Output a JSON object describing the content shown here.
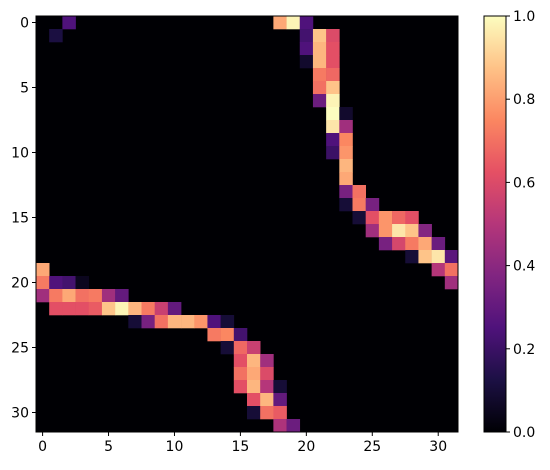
{
  "chart_data": {
    "type": "heatmap",
    "title": "",
    "xlabel": "",
    "ylabel": "",
    "colormap": "magma",
    "rows": 32,
    "cols": 32,
    "xlim": [
      -0.5,
      31.5
    ],
    "ylim": [
      31.5,
      -0.5
    ],
    "x_ticks": [
      0,
      5,
      10,
      15,
      20,
      25,
      30
    ],
    "y_ticks": [
      0,
      5,
      10,
      15,
      20,
      25,
      30
    ],
    "x_tick_labels": [
      "0",
      "5",
      "10",
      "15",
      "20",
      "25",
      "30"
    ],
    "y_tick_labels": [
      "0",
      "5",
      "10",
      "15",
      "20",
      "25",
      "30"
    ],
    "colorbar": {
      "min": 0.0,
      "max": 1.0,
      "ticks": [
        0.0,
        0.2,
        0.4,
        0.6,
        0.8,
        1.0
      ],
      "tick_labels": [
        "0.0",
        "0.2",
        "0.4",
        "0.6",
        "0.8",
        "1.0"
      ]
    },
    "cells": [
      [
        0,
        2,
        0.25
      ],
      [
        1,
        1,
        0.12
      ],
      [
        0,
        18,
        0.82
      ],
      [
        0,
        19,
        0.98
      ],
      [
        0,
        20,
        0.25
      ],
      [
        1,
        20,
        0.22
      ],
      [
        1,
        21,
        0.88
      ],
      [
        1,
        22,
        0.6
      ],
      [
        2,
        20,
        0.25
      ],
      [
        2,
        21,
        0.85
      ],
      [
        2,
        22,
        0.62
      ],
      [
        3,
        20,
        0.08
      ],
      [
        3,
        21,
        0.85
      ],
      [
        3,
        22,
        0.62
      ],
      [
        4,
        21,
        0.72
      ],
      [
        4,
        22,
        0.68
      ],
      [
        5,
        21,
        0.7
      ],
      [
        5,
        22,
        0.88
      ],
      [
        6,
        21,
        0.32
      ],
      [
        6,
        22,
        0.98
      ],
      [
        7,
        22,
        1.0
      ],
      [
        7,
        23,
        0.08
      ],
      [
        8,
        22,
        0.95
      ],
      [
        8,
        23,
        0.45
      ],
      [
        9,
        22,
        0.25
      ],
      [
        9,
        23,
        0.75
      ],
      [
        10,
        22,
        0.2
      ],
      [
        10,
        23,
        0.78
      ],
      [
        11,
        23,
        0.85
      ],
      [
        12,
        23,
        0.82
      ],
      [
        13,
        23,
        0.35
      ],
      [
        13,
        24,
        0.7
      ],
      [
        14,
        23,
        0.1
      ],
      [
        14,
        24,
        0.72
      ],
      [
        14,
        25,
        0.35
      ],
      [
        15,
        24,
        0.1
      ],
      [
        15,
        25,
        0.62
      ],
      [
        15,
        26,
        0.78
      ],
      [
        15,
        27,
        0.68
      ],
      [
        15,
        28,
        0.62
      ],
      [
        16,
        25,
        0.45
      ],
      [
        16,
        26,
        0.78
      ],
      [
        16,
        27,
        0.95
      ],
      [
        16,
        28,
        0.88
      ],
      [
        16,
        29,
        0.38
      ],
      [
        17,
        26,
        0.35
      ],
      [
        17,
        27,
        0.58
      ],
      [
        17,
        28,
        0.72
      ],
      [
        17,
        29,
        0.82
      ],
      [
        17,
        30,
        0.32
      ],
      [
        18,
        28,
        0.1
      ],
      [
        18,
        29,
        0.88
      ],
      [
        18,
        30,
        0.95
      ],
      [
        18,
        31,
        0.28
      ],
      [
        19,
        0,
        0.82
      ],
      [
        19,
        30,
        0.5
      ],
      [
        19,
        31,
        0.7
      ],
      [
        20,
        0,
        0.72
      ],
      [
        20,
        1,
        0.25
      ],
      [
        20,
        2,
        0.22
      ],
      [
        20,
        3,
        0.05
      ],
      [
        20,
        31,
        0.45
      ],
      [
        21,
        0,
        0.45
      ],
      [
        21,
        1,
        0.72
      ],
      [
        21,
        2,
        0.82
      ],
      [
        21,
        3,
        0.7
      ],
      [
        21,
        4,
        0.72
      ],
      [
        21,
        5,
        0.45
      ],
      [
        21,
        6,
        0.3
      ],
      [
        22,
        1,
        0.62
      ],
      [
        22,
        2,
        0.62
      ],
      [
        22,
        3,
        0.62
      ],
      [
        22,
        4,
        0.65
      ],
      [
        22,
        5,
        0.88
      ],
      [
        22,
        6,
        0.98
      ],
      [
        22,
        7,
        0.85
      ],
      [
        22,
        8,
        0.72
      ],
      [
        22,
        9,
        0.55
      ],
      [
        22,
        10,
        0.3
      ],
      [
        23,
        7,
        0.1
      ],
      [
        23,
        8,
        0.35
      ],
      [
        23,
        9,
        0.7
      ],
      [
        23,
        10,
        0.85
      ],
      [
        23,
        11,
        0.85
      ],
      [
        23,
        12,
        0.78
      ],
      [
        23,
        13,
        0.25
      ],
      [
        23,
        14,
        0.1
      ],
      [
        24,
        13,
        0.72
      ],
      [
        24,
        14,
        0.75
      ],
      [
        24,
        15,
        0.22
      ],
      [
        25,
        14,
        0.1
      ],
      [
        25,
        15,
        0.68
      ],
      [
        25,
        16,
        0.55
      ],
      [
        26,
        15,
        0.62
      ],
      [
        26,
        16,
        0.85
      ],
      [
        26,
        17,
        0.45
      ],
      [
        27,
        15,
        0.7
      ],
      [
        27,
        16,
        0.82
      ],
      [
        27,
        17,
        0.6
      ],
      [
        28,
        15,
        0.62
      ],
      [
        28,
        16,
        0.85
      ],
      [
        28,
        17,
        0.5
      ],
      [
        28,
        18,
        0.1
      ],
      [
        29,
        16,
        0.62
      ],
      [
        29,
        17,
        0.85
      ],
      [
        29,
        18,
        0.3
      ],
      [
        30,
        16,
        0.1
      ],
      [
        30,
        17,
        0.7
      ],
      [
        30,
        18,
        0.65
      ],
      [
        31,
        18,
        0.48
      ],
      [
        31,
        19,
        0.32
      ]
    ]
  }
}
